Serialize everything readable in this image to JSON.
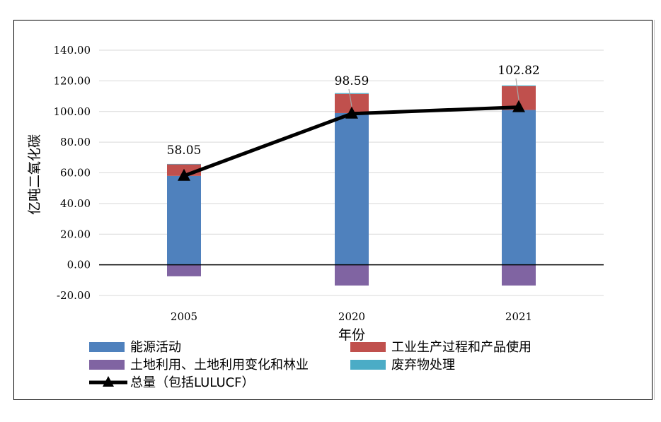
{
  "chart_data": {
    "type": "bar",
    "stacked": true,
    "xlabel": "年份",
    "ylabel": "亿吨二氧化碳",
    "ylim": [
      -20,
      140
    ],
    "yticks": [
      140,
      120,
      100,
      80,
      60,
      40,
      20,
      0,
      -20
    ],
    "ytick_labels": [
      "140.00",
      "120.00",
      "100.00",
      "80.00",
      "60.00",
      "40.00",
      "20.00",
      "0.00",
      "-20.00"
    ],
    "grid": true,
    "categories": [
      "2005",
      "2020",
      "2021"
    ],
    "series": [
      {
        "name": "能源活动",
        "type": "bar",
        "color": "#4f81bd",
        "values": [
          58.0,
          99.0,
          101.0
        ]
      },
      {
        "name": "工业生产过程和产品使用",
        "type": "bar",
        "color": "#c0504d",
        "values": [
          7.5,
          12.5,
          15.5
        ]
      },
      {
        "name": "土地利用、土地利用变化和林业",
        "type": "bar",
        "color": "#8064a2",
        "values": [
          -7.5,
          -13.5,
          -13.5
        ]
      },
      {
        "name": "废弃物处理",
        "type": "bar",
        "color": "#4bacc6",
        "values": [
          0.3,
          0.5,
          0.5
        ]
      },
      {
        "name": "总量（包括LULUCF）",
        "type": "line",
        "color": "#000000",
        "marker": "triangle",
        "values": [
          58.05,
          98.59,
          102.82
        ]
      }
    ],
    "data_labels": [
      "58.05",
      "98.59",
      "102.82"
    ],
    "legend": [
      {
        "name": "能源活动",
        "kind": "box",
        "color": "#4f81bd"
      },
      {
        "name": "工业生产过程和产品使用",
        "kind": "box",
        "color": "#c0504d"
      },
      {
        "name": "土地利用、土地利用变化和林业",
        "kind": "box",
        "color": "#8064a2"
      },
      {
        "name": "废弃物处理",
        "kind": "box",
        "color": "#4bacc6"
      },
      {
        "name": "总量（包括LULUCF）",
        "kind": "line",
        "color": "#000000"
      }
    ],
    "legend_position": "bottom"
  }
}
